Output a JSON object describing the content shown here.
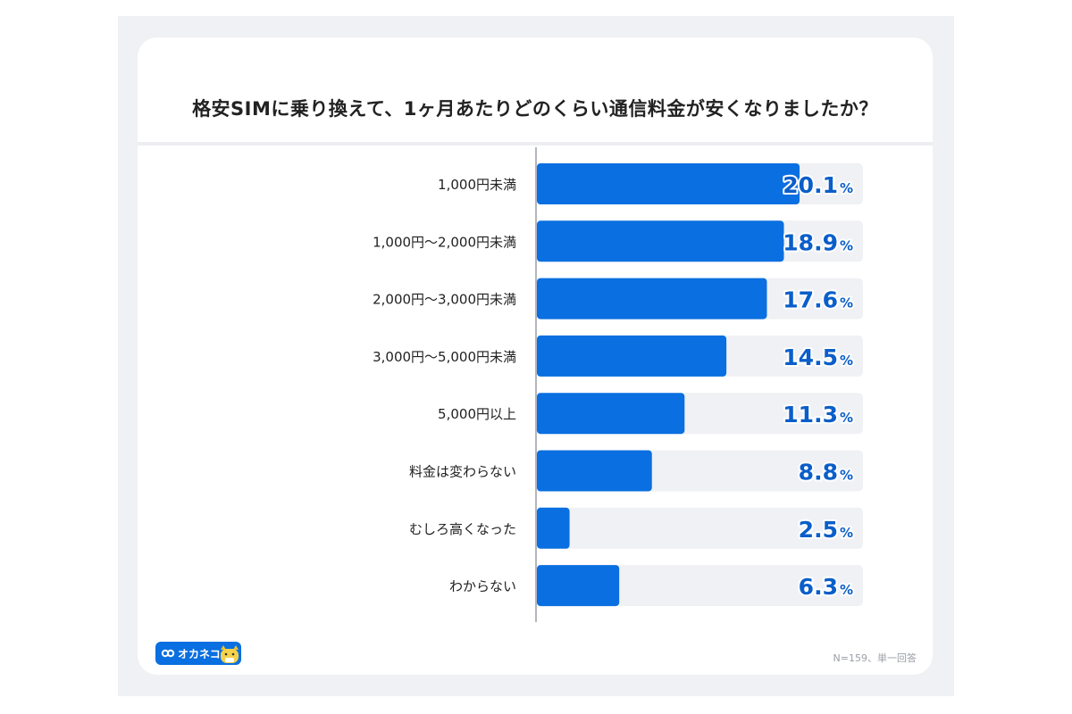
{
  "title": "格安SIMに乗り換えて、1ヶ月あたりどのくらい通信料金が安くなりましたか？",
  "footnote": "N=159、単一回答",
  "brand": {
    "name": "オカネコ",
    "color": "#0a6fe0",
    "icon": "cat-mascot-icon"
  },
  "colors": {
    "bar": "#0a6fe0",
    "track": "#f0f1f4",
    "value_text": "#0a5ec9"
  },
  "chart_data": {
    "type": "bar",
    "orientation": "horizontal",
    "categories": [
      "1,000円未満",
      "1,000円〜2,000円未満",
      "2,000円〜3,000円未満",
      "3,000円〜5,000円未満",
      "5,000円以上",
      "料金は変わらない",
      "むしろ高くなった",
      "わからない"
    ],
    "values": [
      20.1,
      18.9,
      17.6,
      14.5,
      11.3,
      8.8,
      2.5,
      6.3
    ],
    "value_labels": [
      "20.1",
      "18.9",
      "17.6",
      "14.5",
      "11.3",
      "8.8",
      "2.5",
      "6.3"
    ],
    "unit": "%",
    "xlim": [
      0,
      25
    ],
    "grid": false,
    "legend": "none"
  }
}
